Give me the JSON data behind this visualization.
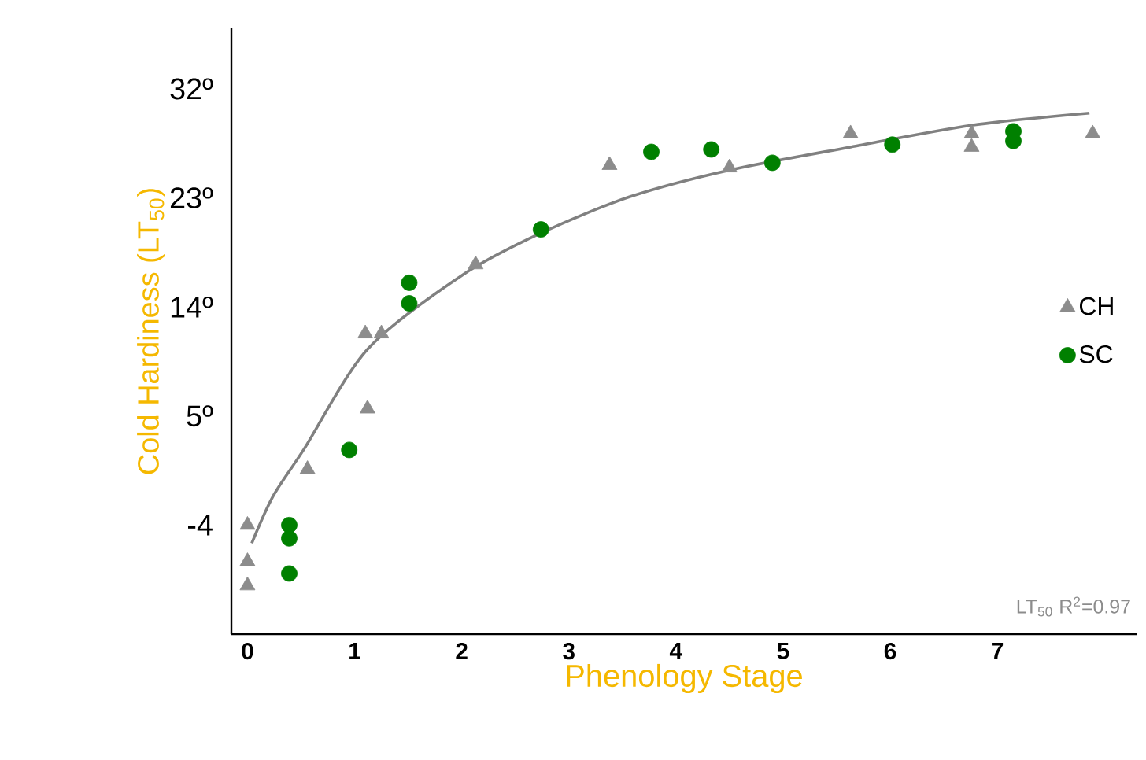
{
  "chart_data": {
    "type": "scatter",
    "xlabel": "Phenology Stage",
    "ylabel": "Cold Hardiness (LT$_{50}$)",
    "xlim": [
      -0.15,
      8.3
    ],
    "ylim": [
      -13,
      37
    ],
    "xticks": [
      0,
      1,
      2,
      3,
      4,
      5,
      6,
      7
    ],
    "yticks": [
      -4,
      {
        "value": 5,
        "label": "5º"
      },
      {
        "value": 14,
        "label": "14º"
      },
      {
        "value": 23,
        "label": "23º"
      },
      {
        "value": 32,
        "label": "32º"
      }
    ],
    "grid": false,
    "legend": "right",
    "annotations": [
      "LT$_{50}$ R$^{2}$=0.97"
    ],
    "series": [
      {
        "name": "CH",
        "marker": "triangle",
        "color": "#8c8c8c",
        "x": [
          0,
          0,
          0,
          0.56,
          1.12,
          1.1,
          1.25,
          2.13,
          3.38,
          4.5,
          5.63,
          6.76,
          6.76,
          7.89
        ],
        "values": [
          -4.0,
          -7.0,
          -9.0,
          0.6,
          5.6,
          11.8,
          11.8,
          17.5,
          25.7,
          25.5,
          28.3,
          28.3,
          27.2,
          28.3
        ]
      },
      {
        "name": "SC",
        "marker": "circle",
        "color": "#008000",
        "x": [
          0.39,
          0.39,
          0.39,
          0.95,
          1.51,
          1.51,
          2.74,
          3.77,
          4.33,
          4.9,
          6.02,
          7.15,
          7.15
        ],
        "values": [
          -4.0,
          -5.1,
          -8.0,
          2.2,
          16.0,
          14.3,
          20.4,
          26.8,
          27.0,
          25.9,
          27.4,
          28.5,
          27.7
        ]
      },
      {
        "type": "line",
        "marker": "none",
        "color": "#808080",
        "x": [
          0.04,
          0.24,
          0.53,
          1.12,
          2.0,
          2.74,
          3.57,
          4.5,
          5.63,
          6.76,
          7.86
        ],
        "values": [
          -5.5,
          -1.6,
          2.3,
          10.5,
          16.6,
          20.1,
          23.1,
          25.3,
          27.2,
          29.0,
          30.0
        ]
      }
    ]
  }
}
